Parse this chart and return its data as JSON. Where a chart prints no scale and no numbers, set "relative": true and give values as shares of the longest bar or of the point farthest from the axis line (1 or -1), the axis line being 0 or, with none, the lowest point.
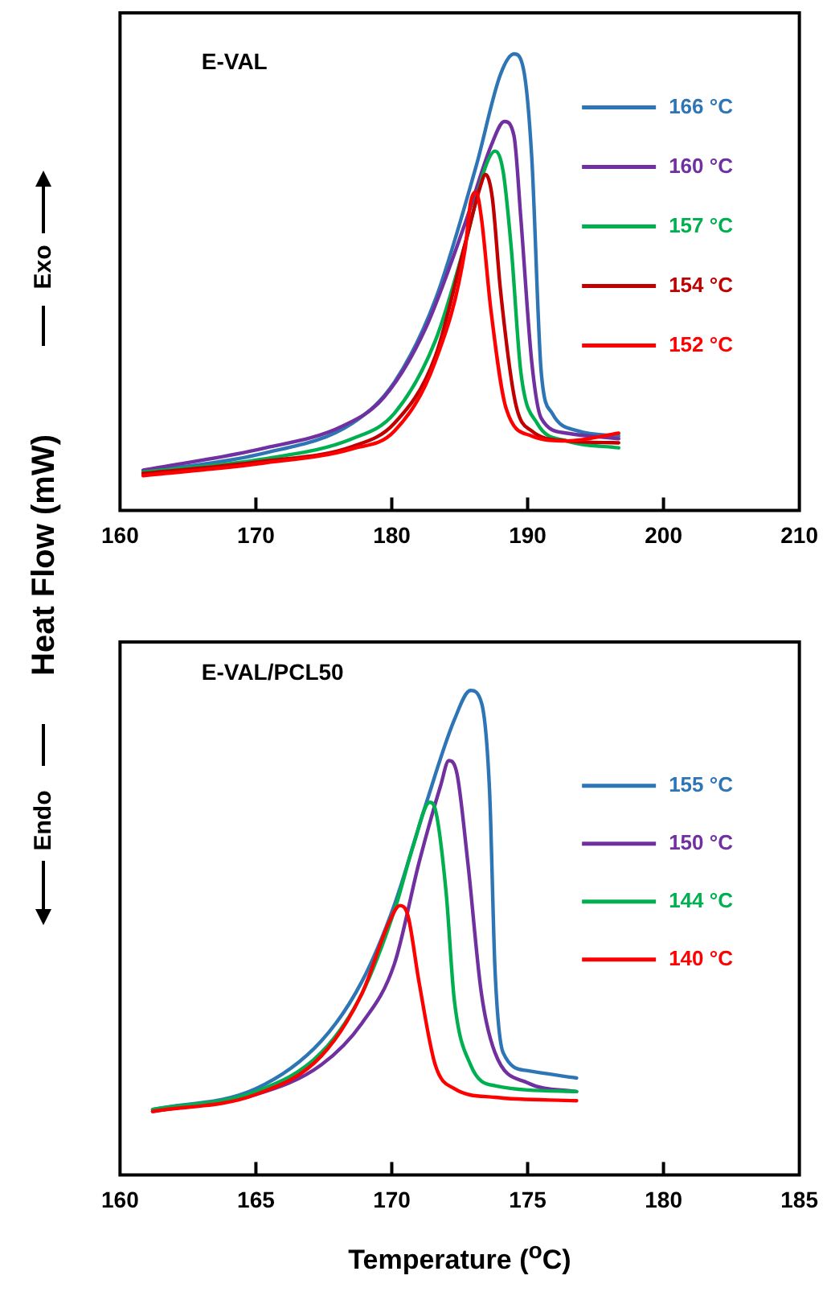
{
  "chart_data": [
    {
      "type": "line",
      "title": "E-VAL",
      "ylabel": "Heat Flow (mW)",
      "annotations": [
        "Exo"
      ],
      "relative": true,
      "legend": "top right",
      "marker": "none",
      "line_style": "solid",
      "grid": false,
      "tick_labels": "x",
      "xlim": [
        160,
        210
      ],
      "xticks": [
        160,
        170,
        180,
        190,
        200,
        210
      ],
      "series": [
        {
          "name": "166 °C",
          "color": "#2e75b6",
          "x": [
            161.7,
            170.4,
            177.1,
            180.2,
            183.2,
            186.2,
            188.0,
            189.0,
            189.7,
            190.3,
            191.0,
            191.8,
            193.7,
            196.7
          ],
          "values": [
            0.084,
            0.124,
            0.191,
            0.281,
            0.461,
            0.753,
            0.955,
            1.0,
            0.966,
            0.775,
            0.303,
            0.213,
            0.174,
            0.163
          ]
        },
        {
          "name": "160 °C",
          "color": "#7030a0",
          "x": [
            161.7,
            170.4,
            176.4,
            179.4,
            182.4,
            185.4,
            187.3,
            188.3,
            189.0,
            189.5,
            190.3,
            191.0,
            192.9,
            196.7
          ],
          "values": [
            0.088,
            0.135,
            0.185,
            0.247,
            0.393,
            0.629,
            0.798,
            0.852,
            0.82,
            0.64,
            0.326,
            0.202,
            0.169,
            0.157
          ]
        },
        {
          "name": "157 °C",
          "color": "#00b050",
          "x": [
            161.7,
            170.4,
            177.1,
            180.2,
            183.2,
            185.4,
            186.9,
            187.6,
            188.2,
            188.8,
            189.5,
            190.7,
            192.9,
            196.7
          ],
          "values": [
            0.084,
            0.112,
            0.157,
            0.213,
            0.371,
            0.584,
            0.753,
            0.787,
            0.742,
            0.573,
            0.303,
            0.191,
            0.152,
            0.137
          ]
        },
        {
          "name": "154 °C",
          "color": "#c00000",
          "x": [
            161.7,
            170.4,
            177.1,
            180.2,
            183.2,
            185.4,
            186.5,
            186.9,
            187.4,
            188.0,
            189.1,
            190.3,
            192.9,
            196.7
          ],
          "values": [
            0.081,
            0.107,
            0.14,
            0.191,
            0.337,
            0.584,
            0.708,
            0.736,
            0.685,
            0.483,
            0.236,
            0.174,
            0.152,
            0.148
          ]
        },
        {
          "name": "152 °C",
          "color": "#ff0000",
          "x": [
            161.7,
            170.4,
            177.1,
            180.2,
            183.2,
            185.4,
            185.8,
            186.2,
            186.6,
            187.3,
            188.4,
            190.3,
            192.9,
            196.7
          ],
          "values": [
            0.076,
            0.103,
            0.135,
            0.174,
            0.326,
            0.573,
            0.674,
            0.697,
            0.64,
            0.438,
            0.225,
            0.163,
            0.152,
            0.169
          ]
        }
      ]
    },
    {
      "type": "line",
      "title": "E-VAL/PCL50",
      "xlabel": "Temperature ($^{o}$C)",
      "annotations": [
        "Endo"
      ],
      "relative": true,
      "legend": "top right",
      "marker": "none",
      "line_style": "solid",
      "grid": false,
      "tick_labels": "x",
      "xlim": [
        160,
        185
      ],
      "xticks": [
        160,
        165,
        170,
        175,
        180,
        185
      ],
      "series": [
        {
          "name": "155 °C",
          "color": "#2e75b6",
          "x": [
            161.2,
            165.0,
            167.4,
            168.9,
            170.1,
            171.2,
            172.3,
            172.9,
            173.3,
            173.6,
            173.8,
            174.1,
            175.0,
            176.8
          ],
          "values": [
            0.135,
            0.178,
            0.276,
            0.399,
            0.558,
            0.755,
            0.939,
            1.0,
            0.975,
            0.791,
            0.423,
            0.252,
            0.215,
            0.2
          ]
        },
        {
          "name": "150 °C",
          "color": "#7030a0",
          "x": [
            161.2,
            165.0,
            167.4,
            168.9,
            170.1,
            171.0,
            171.8,
            172.1,
            172.4,
            172.8,
            173.3,
            173.8,
            175.0,
            176.8
          ],
          "values": [
            0.131,
            0.166,
            0.227,
            0.313,
            0.436,
            0.644,
            0.804,
            0.855,
            0.828,
            0.644,
            0.374,
            0.252,
            0.19,
            0.172
          ]
        },
        {
          "name": "144 °C",
          "color": "#00b050",
          "x": [
            161.2,
            165.0,
            167.4,
            168.9,
            170.1,
            170.8,
            171.4,
            171.6,
            172.0,
            172.3,
            172.9,
            173.8,
            176.8
          ],
          "values": [
            0.135,
            0.172,
            0.252,
            0.374,
            0.546,
            0.681,
            0.769,
            0.755,
            0.583,
            0.362,
            0.227,
            0.184,
            0.172
          ]
        },
        {
          "name": "140 °C",
          "color": "#ff0000",
          "x": [
            161.2,
            165.0,
            167.4,
            168.9,
            169.9,
            170.3,
            170.6,
            171.0,
            171.6,
            172.3,
            173.8,
            176.8
          ],
          "values": [
            0.131,
            0.166,
            0.245,
            0.374,
            0.521,
            0.556,
            0.534,
            0.399,
            0.227,
            0.178,
            0.16,
            0.153
          ]
        }
      ]
    }
  ]
}
